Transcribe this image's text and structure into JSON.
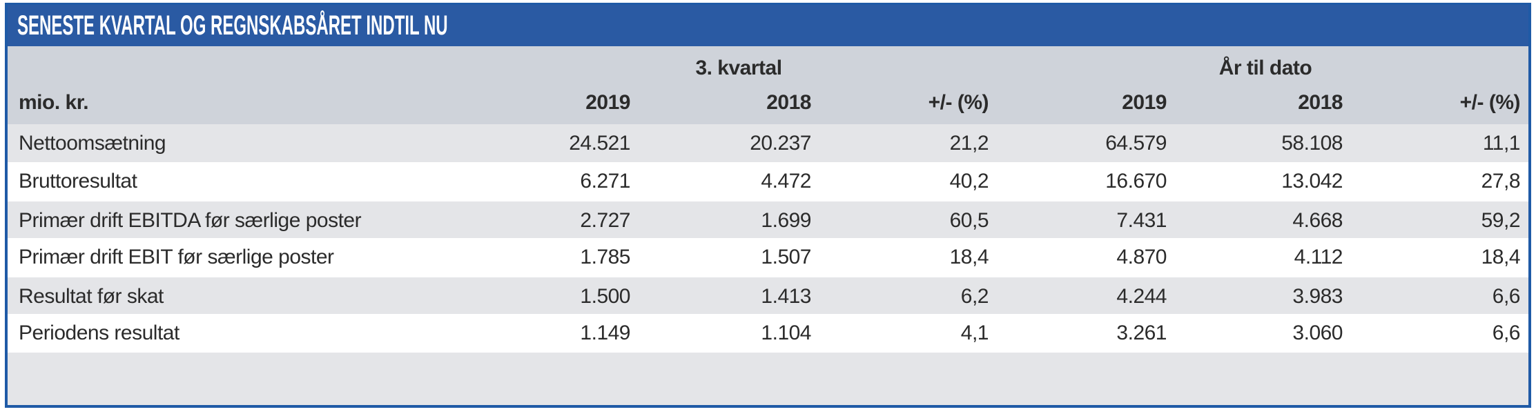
{
  "title": "SENESTE KVARTAL OG REGNSKABSÅRET INDTIL NU",
  "header": {
    "unit_label": "mio. kr.",
    "groups": [
      "3. kvartal",
      "År til dato"
    ],
    "columns": [
      "2019",
      "2018",
      "+/- (%)",
      "2019",
      "2018",
      "+/- (%)"
    ]
  },
  "rows": [
    {
      "label": "Nettoomsætning",
      "values": [
        "24.521",
        "20.237",
        "21,2",
        "64.579",
        "58.108",
        "11,1"
      ]
    },
    {
      "label": "Bruttoresultat",
      "values": [
        "6.271",
        "4.472",
        "40,2",
        "16.670",
        "13.042",
        "27,8"
      ]
    },
    {
      "label": "Primær drift EBITDA før særlige poster",
      "values": [
        "2.727",
        "1.699",
        "60,5",
        "7.431",
        "4.668",
        "59,2"
      ]
    },
    {
      "label": "Primær drift EBIT før særlige poster",
      "values": [
        "1.785",
        "1.507",
        "18,4",
        "4.870",
        "4.112",
        "18,4"
      ]
    },
    {
      "label": "Resultat før skat",
      "values": [
        "1.500",
        "1.413",
        "6,2",
        "4.244",
        "3.983",
        "6,6"
      ]
    },
    {
      "label": "Periodens resultat",
      "values": [
        "1.149",
        "1.104",
        "4,1",
        "3.261",
        "3.060",
        "6,6"
      ]
    }
  ],
  "colors": {
    "title_bar": "#2a5aa3",
    "border": "#1f5aa6",
    "header_bg": "#cfd3da",
    "row_gray": "#e4e5e8",
    "row_white": "#ffffff"
  }
}
